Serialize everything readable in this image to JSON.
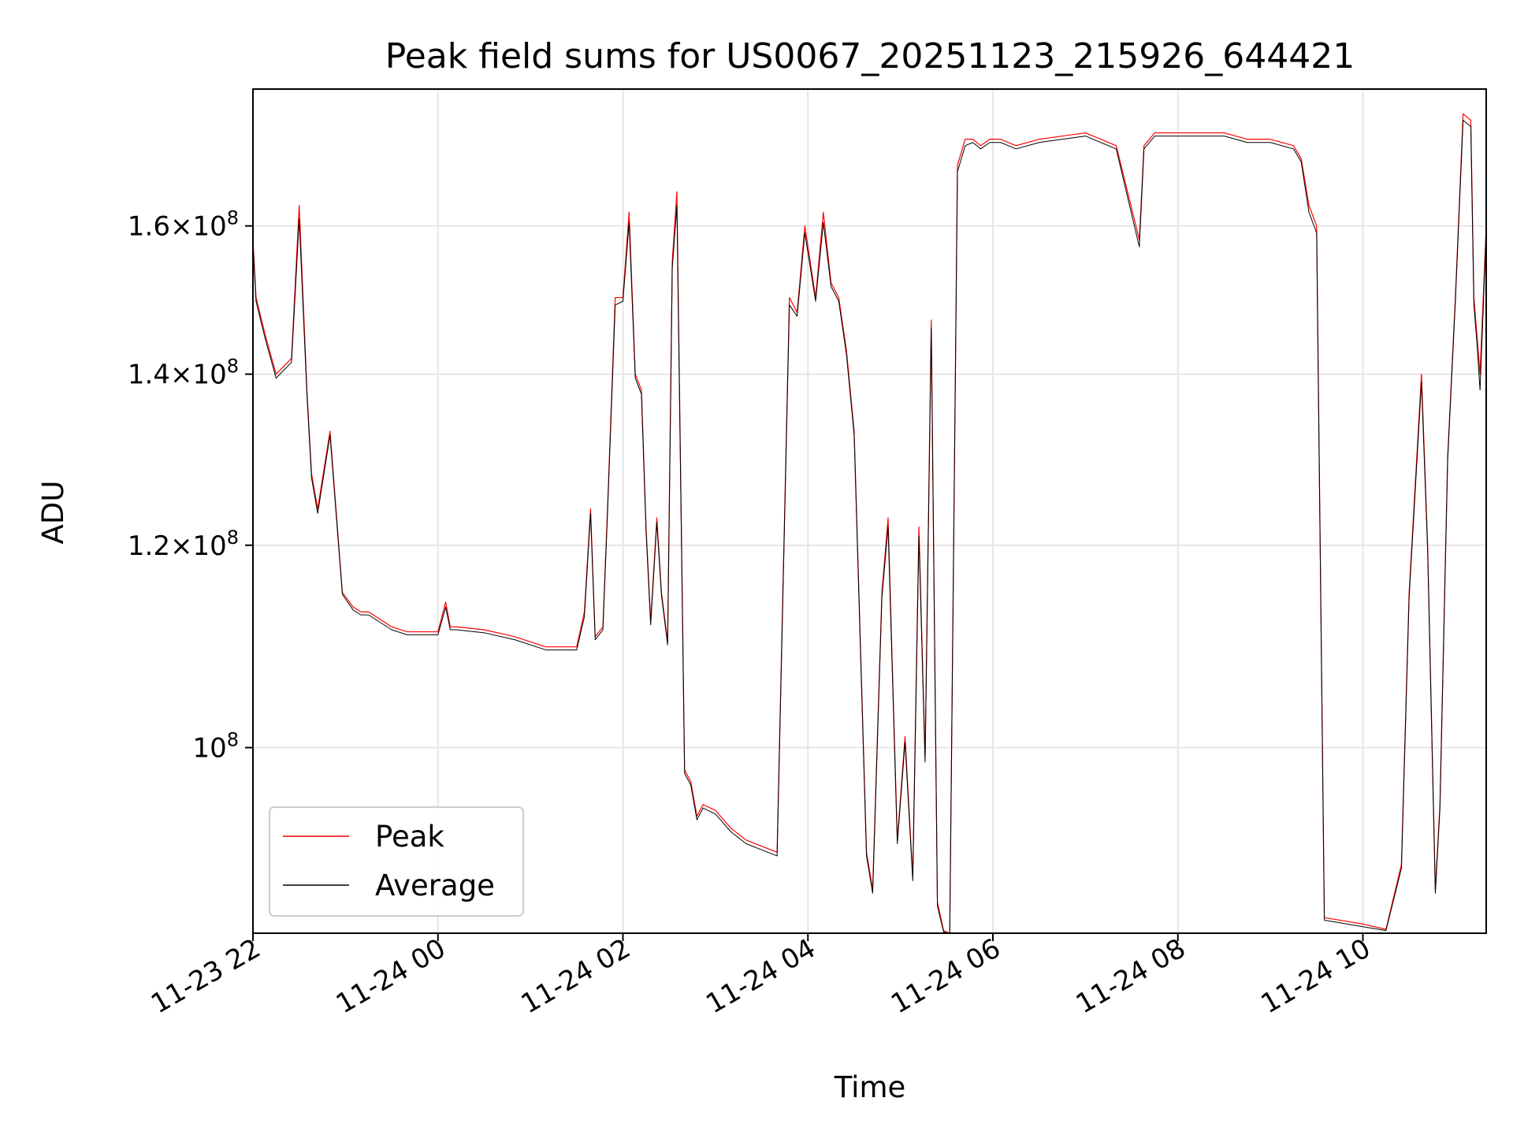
{
  "chart_data": {
    "type": "line",
    "title": "Peak field sums for US0067_20251123_215926_644421",
    "xlabel": "Time",
    "ylabel": "ADU",
    "yscale": "log",
    "grid": true,
    "legend_position": "lower-left",
    "xlim": [
      "2025-11-23T22:00",
      "2025-11-24T11:20"
    ],
    "ylim": [
      84600000,
      181000000
    ],
    "x_ticks": [
      {
        "value": "2025-11-23T22:00",
        "label": "11-23 22"
      },
      {
        "value": "2025-11-24T00:00",
        "label": "11-24 00"
      },
      {
        "value": "2025-11-24T02:00",
        "label": "11-24 02"
      },
      {
        "value": "2025-11-24T04:00",
        "label": "11-24 04"
      },
      {
        "value": "2025-11-24T06:00",
        "label": "11-24 06"
      },
      {
        "value": "2025-11-24T08:00",
        "label": "11-24 08"
      },
      {
        "value": "2025-11-24T10:00",
        "label": "11-24 10"
      }
    ],
    "y_ticks": [
      {
        "value": 100000000,
        "mantissa": "",
        "exponent": "8"
      },
      {
        "value": 120000000,
        "mantissa": "1.2",
        "exponent": "8"
      },
      {
        "value": 140000000,
        "mantissa": "1.4",
        "exponent": "8"
      },
      {
        "value": 160000000,
        "mantissa": "1.6",
        "exponent": "8"
      }
    ],
    "series": [
      {
        "name": "Peak",
        "color": "#ff0000",
        "x": [
          "2025-11-23T22:00",
          "2025-11-23T22:02",
          "2025-11-23T22:08",
          "2025-11-23T22:15",
          "2025-11-23T22:25",
          "2025-11-23T22:30",
          "2025-11-23T22:35",
          "2025-11-23T22:38",
          "2025-11-23T22:42",
          "2025-11-23T22:50",
          "2025-11-23T22:58",
          "2025-11-23T23:05",
          "2025-11-23T23:10",
          "2025-11-23T23:15",
          "2025-11-23T23:30",
          "2025-11-23T23:40",
          "2025-11-23T23:50",
          "2025-11-24T00:00",
          "2025-11-24T00:05",
          "2025-11-24T00:08",
          "2025-11-24T00:12",
          "2025-11-24T00:30",
          "2025-11-24T00:50",
          "2025-11-24T01:10",
          "2025-11-24T01:30",
          "2025-11-24T01:35",
          "2025-11-24T01:39",
          "2025-11-24T01:42",
          "2025-11-24T01:47",
          "2025-11-24T01:50",
          "2025-11-24T01:55",
          "2025-11-24T02:00",
          "2025-11-24T02:04",
          "2025-11-24T02:08",
          "2025-11-24T02:12",
          "2025-11-24T02:15",
          "2025-11-24T02:18",
          "2025-11-24T02:22",
          "2025-11-24T02:25",
          "2025-11-24T02:29",
          "2025-11-24T02:32",
          "2025-11-24T02:35",
          "2025-11-24T02:40",
          "2025-11-24T02:44",
          "2025-11-24T02:48",
          "2025-11-24T02:52",
          "2025-11-24T03:00",
          "2025-11-24T03:10",
          "2025-11-24T03:20",
          "2025-11-24T03:30",
          "2025-11-24T03:40",
          "2025-11-24T03:48",
          "2025-11-24T03:53",
          "2025-11-24T03:58",
          "2025-11-24T04:05",
          "2025-11-24T04:10",
          "2025-11-24T04:15",
          "2025-11-24T04:20",
          "2025-11-24T04:25",
          "2025-11-24T04:30",
          "2025-11-24T04:38",
          "2025-11-24T04:42",
          "2025-11-24T04:48",
          "2025-11-24T04:52",
          "2025-11-24T04:58",
          "2025-11-24T05:03",
          "2025-11-24T05:08",
          "2025-11-24T05:12",
          "2025-11-24T05:16",
          "2025-11-24T05:20",
          "2025-11-24T05:24",
          "2025-11-24T05:28",
          "2025-11-24T05:32",
          "2025-11-24T05:37",
          "2025-11-24T05:42",
          "2025-11-24T05:47",
          "2025-11-24T05:52",
          "2025-11-24T05:58",
          "2025-11-24T06:05",
          "2025-11-24T06:15",
          "2025-11-24T06:30",
          "2025-11-24T07:00",
          "2025-11-24T07:20",
          "2025-11-24T07:35",
          "2025-11-24T07:38",
          "2025-11-24T07:45",
          "2025-11-24T08:00",
          "2025-11-24T08:30",
          "2025-11-24T08:45",
          "2025-11-24T09:00",
          "2025-11-24T09:15",
          "2025-11-24T09:20",
          "2025-11-24T09:25",
          "2025-11-24T09:30",
          "2025-11-24T09:35",
          "2025-11-24T09:45",
          "2025-11-24T10:00",
          "2025-11-24T10:15",
          "2025-11-24T10:25",
          "2025-11-24T10:30",
          "2025-11-24T10:38",
          "2025-11-24T10:42",
          "2025-11-24T10:47",
          "2025-11-24T10:50",
          "2025-11-24T10:55",
          "2025-11-24T11:00",
          "2025-11-24T11:05",
          "2025-11-24T11:10",
          "2025-11-24T11:12",
          "2025-11-24T11:14",
          "2025-11-24T11:16",
          "2025-11-24T11:20"
        ],
        "values": [
          158000000,
          150000000,
          145000000,
          140000000,
          142000000,
          163000000,
          138000000,
          128000000,
          124000000,
          133000000,
          115000000,
          113500000,
          113000000,
          113000000,
          111500000,
          111000000,
          111000000,
          111000000,
          114000000,
          111500000,
          111500000,
          111200000,
          110500000,
          109500000,
          109500000,
          113000000,
          124000000,
          110500000,
          111500000,
          124000000,
          150000000,
          150000000,
          162000000,
          140000000,
          138000000,
          122000000,
          112000000,
          123000000,
          115000000,
          110000000,
          155000000,
          165000000,
          98000000,
          97000000,
          94000000,
          95000000,
          94500000,
          93000000,
          92000000,
          91500000,
          91000000,
          150000000,
          148000000,
          160000000,
          150000000,
          162000000,
          152000000,
          150000000,
          143000000,
          133000000,
          91000000,
          88000000,
          115000000,
          123000000,
          92000000,
          101000000,
          89000000,
          122000000,
          99000000,
          147000000,
          87000000,
          84800000,
          84600000,
          169000000,
          173000000,
          173000000,
          172000000,
          173000000,
          173000000,
          172000000,
          173000000,
          174000000,
          172000000,
          158000000,
          172000000,
          174000000,
          174000000,
          174000000,
          173000000,
          173000000,
          172000000,
          170000000,
          163000000,
          160000000,
          85800000,
          85600000,
          85300000,
          84900000,
          90000000,
          115000000,
          140000000,
          120000000,
          88000000,
          95000000,
          130000000,
          150000000,
          177000000,
          176000000,
          150000000,
          145000000,
          140000000,
          160000000
        ],
        "stroke_width": 1.2
      },
      {
        "name": "Average",
        "color": "#000000",
        "x": [
          "2025-11-23T22:00",
          "2025-11-23T22:02",
          "2025-11-23T22:08",
          "2025-11-23T22:15",
          "2025-11-23T22:25",
          "2025-11-23T22:30",
          "2025-11-23T22:35",
          "2025-11-23T22:38",
          "2025-11-23T22:42",
          "2025-11-23T22:50",
          "2025-11-23T22:58",
          "2025-11-23T23:05",
          "2025-11-23T23:10",
          "2025-11-23T23:15",
          "2025-11-23T23:30",
          "2025-11-23T23:40",
          "2025-11-23T23:50",
          "2025-11-24T00:00",
          "2025-11-24T00:05",
          "2025-11-24T00:08",
          "2025-11-24T00:12",
          "2025-11-24T00:30",
          "2025-11-24T00:50",
          "2025-11-24T01:10",
          "2025-11-24T01:30",
          "2025-11-24T01:35",
          "2025-11-24T01:39",
          "2025-11-24T01:42",
          "2025-11-24T01:47",
          "2025-11-24T01:50",
          "2025-11-24T01:55",
          "2025-11-24T02:00",
          "2025-11-24T02:04",
          "2025-11-24T02:08",
          "2025-11-24T02:12",
          "2025-11-24T02:15",
          "2025-11-24T02:18",
          "2025-11-24T02:22",
          "2025-11-24T02:25",
          "2025-11-24T02:29",
          "2025-11-24T02:32",
          "2025-11-24T02:35",
          "2025-11-24T02:40",
          "2025-11-24T02:44",
          "2025-11-24T02:48",
          "2025-11-24T02:52",
          "2025-11-24T03:00",
          "2025-11-24T03:10",
          "2025-11-24T03:20",
          "2025-11-24T03:30",
          "2025-11-24T03:40",
          "2025-11-24T03:48",
          "2025-11-24T03:53",
          "2025-11-24T03:58",
          "2025-11-24T04:05",
          "2025-11-24T04:10",
          "2025-11-24T04:15",
          "2025-11-24T04:20",
          "2025-11-24T04:25",
          "2025-11-24T04:30",
          "2025-11-24T04:38",
          "2025-11-24T04:42",
          "2025-11-24T04:48",
          "2025-11-24T04:52",
          "2025-11-24T04:58",
          "2025-11-24T05:03",
          "2025-11-24T05:08",
          "2025-11-24T05:12",
          "2025-11-24T05:16",
          "2025-11-24T05:20",
          "2025-11-24T05:24",
          "2025-11-24T05:28",
          "2025-11-24T05:32",
          "2025-11-24T05:37",
          "2025-11-24T05:42",
          "2025-11-24T05:47",
          "2025-11-24T05:52",
          "2025-11-24T05:58",
          "2025-11-24T06:05",
          "2025-11-24T06:15",
          "2025-11-24T06:30",
          "2025-11-24T07:00",
          "2025-11-24T07:20",
          "2025-11-24T07:35",
          "2025-11-24T07:38",
          "2025-11-24T07:45",
          "2025-11-24T08:00",
          "2025-11-24T08:30",
          "2025-11-24T08:45",
          "2025-11-24T09:00",
          "2025-11-24T09:15",
          "2025-11-24T09:20",
          "2025-11-24T09:25",
          "2025-11-24T09:30",
          "2025-11-24T09:35",
          "2025-11-24T09:45",
          "2025-11-24T10:00",
          "2025-11-24T10:15",
          "2025-11-24T10:25",
          "2025-11-24T10:30",
          "2025-11-24T10:38",
          "2025-11-24T10:42",
          "2025-11-24T10:47",
          "2025-11-24T10:50",
          "2025-11-24T10:55",
          "2025-11-24T11:00",
          "2025-11-24T11:05",
          "2025-11-24T11:10",
          "2025-11-24T11:12",
          "2025-11-24T11:14",
          "2025-11-24T11:16",
          "2025-11-24T11:20"
        ],
        "values": [
          157500000,
          149500000,
          144500000,
          139500000,
          141500000,
          161000000,
          137500000,
          127500000,
          123500000,
          132500000,
          114800000,
          113200000,
          112700000,
          112700000,
          111200000,
          110700000,
          110700000,
          110700000,
          113500000,
          111200000,
          111200000,
          110900000,
          110200000,
          109200000,
          109200000,
          112500000,
          123500000,
          110200000,
          111200000,
          123500000,
          149000000,
          149500000,
          160500000,
          139500000,
          137500000,
          121500000,
          111700000,
          122500000,
          114700000,
          109700000,
          154000000,
          163000000,
          97700000,
          96700000,
          93700000,
          94700000,
          94200000,
          92700000,
          91700000,
          91200000,
          90700000,
          149000000,
          147500000,
          159000000,
          149500000,
          160500000,
          151500000,
          149500000,
          142500000,
          132500000,
          90700000,
          87700000,
          114500000,
          122000000,
          91700000,
          100500000,
          88700000,
          121000000,
          98700000,
          146000000,
          86700000,
          84700000,
          84600000,
          168000000,
          172000000,
          172500000,
          171500000,
          172500000,
          172500000,
          171500000,
          172500000,
          173500000,
          171500000,
          157000000,
          171500000,
          173500000,
          173500000,
          173500000,
          172500000,
          172500000,
          171500000,
          169500000,
          162000000,
          159000000,
          85600000,
          85400000,
          85100000,
          84800000,
          89700000,
          114500000,
          139000000,
          119500000,
          87700000,
          94700000,
          129500000,
          149500000,
          176000000,
          175000000,
          149000000,
          144000000,
          138000000,
          159000000
        ],
        "stroke_width": 1.0
      }
    ]
  }
}
